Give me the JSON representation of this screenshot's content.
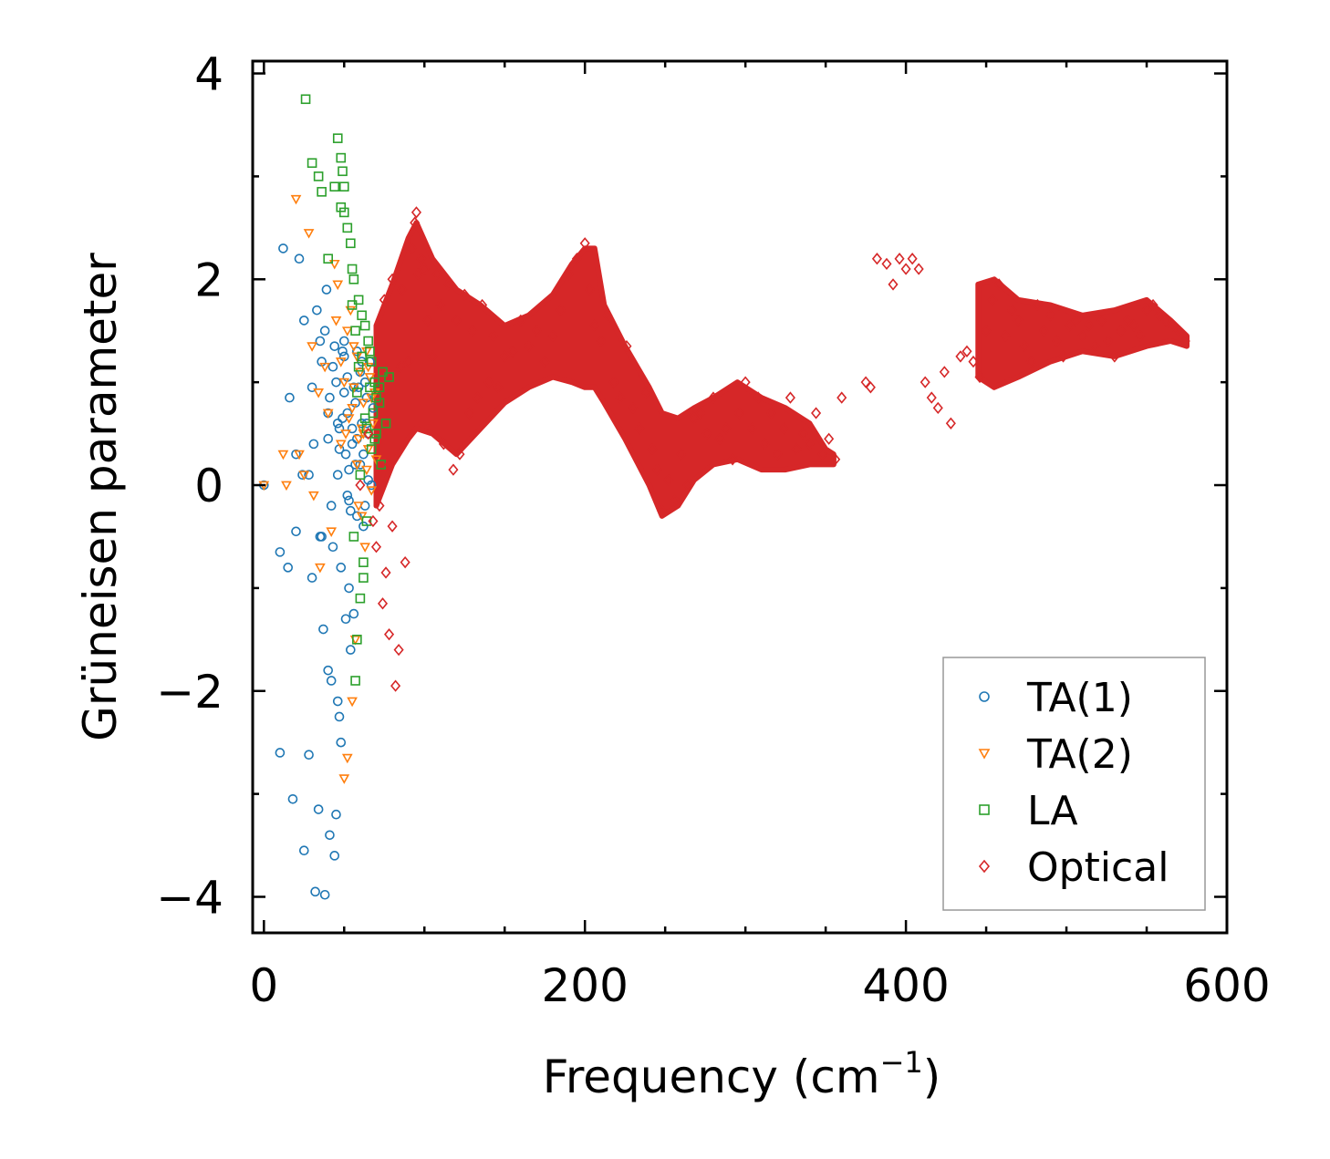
{
  "chart_data": {
    "type": "scatter",
    "title": "",
    "xlabel": "Frequency (cm",
    "xlabel_sup": "−1",
    "xlabel_end": ")",
    "ylabel": "Grüneisen parameter",
    "xlim": [
      -7,
      600
    ],
    "ylim": [
      -4.35,
      4.12
    ],
    "xticks": [
      0,
      200,
      400,
      600
    ],
    "xtick_labels": [
      "0",
      "200",
      "400",
      "600"
    ],
    "yticks": [
      -4,
      -2,
      0,
      2,
      4
    ],
    "ytick_labels": [
      "−4",
      "−2",
      "0",
      "2",
      "4"
    ],
    "legend_position": "lower-right",
    "grid": false,
    "series": [
      {
        "name": "TA(1)",
        "marker": "circle",
        "color": "#1f77b4",
        "x": [
          0,
          10,
          12,
          16,
          18,
          20,
          22,
          24,
          25,
          28,
          30,
          31,
          32,
          33,
          34,
          35,
          36,
          37,
          38,
          39,
          40,
          41,
          42,
          43,
          44,
          45,
          46,
          47,
          48,
          49,
          50,
          51,
          52,
          53,
          54,
          55,
          56,
          57,
          58,
          59,
          60,
          61,
          62,
          63,
          64,
          65,
          66,
          67,
          68,
          44,
          46,
          50,
          52,
          55,
          58,
          60,
          40,
          42,
          45,
          47,
          49,
          53,
          36,
          38,
          28,
          25,
          20,
          15,
          10,
          30,
          35,
          40,
          48,
          52,
          56,
          62,
          65,
          43,
          47,
          51,
          54,
          57,
          61,
          64,
          41,
          46,
          50,
          53,
          58,
          63
        ],
        "y": [
          0,
          -2.6,
          2.3,
          0.85,
          -3.05,
          -0.45,
          2.2,
          0.1,
          -3.55,
          -2.62,
          0.95,
          0.4,
          -3.95,
          1.7,
          -3.15,
          1.4,
          1.2,
          -1.4,
          -3.98,
          1.9,
          -1.8,
          -3.4,
          -1.9,
          -0.6,
          -3.6,
          -3.2,
          -2.1,
          -2.25,
          -2.5,
          1.3,
          0.9,
          -1.3,
          0.7,
          -1.0,
          -1.6,
          0.4,
          -1.25,
          0.2,
          -0.3,
          0.95,
          1.1,
          0.6,
          0.3,
          -0.2,
          0.85,
          0.5,
          1.2,
          0.0,
          0.75,
          1.35,
          0.6,
          1.25,
          1.05,
          0.55,
          1.3,
          0.2,
          0.7,
          -0.2,
          1.0,
          0.35,
          0.65,
          0.15,
          -0.5,
          1.5,
          0.1,
          1.6,
          0.3,
          -0.8,
          -0.65,
          -0.9,
          -0.5,
          0.45,
          -0.8,
          -0.1,
          0.95,
          -0.4,
          0.05,
          1.15,
          0.55,
          0.3,
          -0.25,
          0.8,
          1.2,
          0.6,
          0.85,
          0.1,
          1.4,
          -0.15,
          0.45,
          1.0
        ]
      },
      {
        "name": "TA(2)",
        "marker": "triangle-down",
        "color": "#ff7f0e",
        "x": [
          0,
          12,
          14,
          20,
          22,
          25,
          28,
          30,
          31,
          34,
          35,
          38,
          40,
          42,
          44,
          46,
          48,
          50,
          51,
          52,
          54,
          55,
          56,
          57,
          58,
          59,
          60,
          61,
          62,
          63,
          64,
          65,
          66,
          67,
          68,
          69,
          70,
          52,
          55,
          58,
          61,
          64,
          67,
          45,
          48,
          50,
          53,
          56,
          59,
          62,
          65
        ],
        "y": [
          0,
          0.3,
          0.0,
          2.78,
          0.3,
          0.1,
          2.45,
          1.35,
          -0.1,
          0.9,
          -0.8,
          1.15,
          0.7,
          -0.45,
          2.15,
          1.95,
          1.2,
          -2.85,
          0.5,
          -2.65,
          1.7,
          -2.1,
          0.95,
          -1.5,
          0.2,
          0.45,
          1.1,
          -0.3,
          0.8,
          -0.6,
          1.3,
          0.35,
          1.05,
          -0.05,
          0.6,
          0.9,
          0.25,
          1.5,
          0.75,
          1.25,
          0.55,
          0.15,
          0.85,
          1.6,
          0.4,
          1.0,
          0.65,
          1.35,
          -0.2,
          0.5,
          1.15
        ]
      },
      {
        "name": "LA",
        "marker": "square",
        "color": "#2ca02c",
        "x": [
          26,
          30,
          34,
          36,
          40,
          44,
          46,
          48,
          48,
          49,
          50,
          50,
          52,
          54,
          55,
          56,
          57,
          58,
          59,
          60,
          61,
          62,
          63,
          64,
          65,
          66,
          67,
          68,
          69,
          70,
          72,
          74,
          76,
          78,
          55,
          58,
          61,
          64,
          67,
          70,
          73,
          57,
          60,
          63,
          66,
          69,
          72,
          56,
          59,
          62
        ],
        "y": [
          3.75,
          3.13,
          3.0,
          2.85,
          2.2,
          2.9,
          3.37,
          3.18,
          2.7,
          3.05,
          2.65,
          2.9,
          2.5,
          2.35,
          2.1,
          2.0,
          -1.9,
          -1.5,
          1.8,
          -1.1,
          1.65,
          -0.75,
          1.55,
          -0.35,
          1.4,
          0.95,
          1.2,
          0.7,
          1.0,
          0.5,
          0.8,
          1.1,
          0.6,
          1.05,
          1.75,
          0.9,
          1.25,
          0.55,
          0.35,
          0.85,
          0.2,
          1.5,
          0.1,
          0.65,
          1.3,
          0.45,
          0.95,
          -0.5,
          1.15,
          -0.9
        ]
      },
      {
        "name": "Optical",
        "marker": "diamond",
        "color": "#d62728",
        "x": [
          60,
          65,
          68,
          70,
          72,
          74,
          75,
          76,
          78,
          78,
          80,
          80,
          82,
          84,
          85,
          86,
          88,
          90,
          92,
          94,
          95,
          96,
          98,
          100,
          102,
          105,
          108,
          110,
          112,
          115,
          118,
          120,
          122,
          125,
          128,
          130,
          133,
          136,
          140,
          143,
          146,
          150,
          155,
          160,
          165,
          170,
          175,
          180,
          185,
          190,
          195,
          200,
          203,
          206,
          210,
          214,
          218,
          222,
          226,
          230,
          234,
          238,
          242,
          245,
          248,
          252,
          256,
          260,
          264,
          268,
          272,
          276,
          280,
          284,
          288,
          292,
          296,
          300,
          304,
          308,
          312,
          316,
          320,
          324,
          328,
          332,
          336,
          340,
          344,
          348,
          352,
          356,
          360,
          375,
          378,
          382,
          388,
          392,
          396,
          400,
          404,
          408,
          412,
          416,
          420,
          424,
          428,
          434,
          438,
          442,
          446,
          450,
          454,
          458,
          462,
          466,
          470,
          474,
          478,
          482,
          486,
          490,
          494,
          498,
          502,
          506,
          510,
          514,
          518,
          522,
          526,
          530,
          534,
          538,
          542,
          546,
          550,
          554,
          558,
          562,
          566,
          570,
          574
        ],
        "y": [
          0.0,
          0.5,
          -0.35,
          -0.6,
          -0.2,
          -1.15,
          1.8,
          -0.85,
          -1.45,
          0.2,
          -0.4,
          2.0,
          -1.95,
          -1.6,
          1.15,
          1.9,
          -0.75,
          1.2,
          2.3,
          2.55,
          2.65,
          2.05,
          2.2,
          2.1,
          1.6,
          1.25,
          2.05,
          1.75,
          0.4,
          1.95,
          0.15,
          1.6,
          0.3,
          1.85,
          0.7,
          1.5,
          0.85,
          1.75,
          1.0,
          1.45,
          0.95,
          1.25,
          1.3,
          1.6,
          1.35,
          1.5,
          1.2,
          1.45,
          1.7,
          2.05,
          2.2,
          2.35,
          1.9,
          1.55,
          1.4,
          1.65,
          1.0,
          0.85,
          1.35,
          0.75,
          0.55,
          0.9,
          0.35,
          0.15,
          -0.25,
          0.05,
          -0.15,
          0.3,
          0.0,
          0.65,
          0.7,
          0.5,
          0.85,
          0.45,
          0.55,
          0.25,
          0.7,
          1.0,
          0.55,
          0.85,
          0.4,
          0.7,
          0.3,
          0.55,
          0.85,
          0.35,
          0.5,
          0.4,
          0.7,
          0.3,
          0.45,
          0.25,
          0.85,
          1.0,
          0.95,
          2.2,
          2.15,
          1.95,
          2.2,
          2.1,
          2.2,
          2.1,
          1.0,
          0.85,
          0.75,
          1.1,
          0.6,
          1.25,
          1.3,
          1.2,
          1.05,
          1.5,
          1.8,
          1.95,
          1.45,
          1.7,
          1.6,
          1.35,
          1.2,
          1.75,
          1.5,
          1.65,
          1.4,
          1.25,
          1.55,
          1.6,
          1.45,
          1.55,
          1.35,
          1.6,
          1.4,
          1.25,
          1.5,
          1.6,
          1.55,
          1.45,
          1.7,
          1.75,
          1.65,
          1.6,
          1.55,
          1.5,
          1.4
        ]
      }
    ]
  }
}
